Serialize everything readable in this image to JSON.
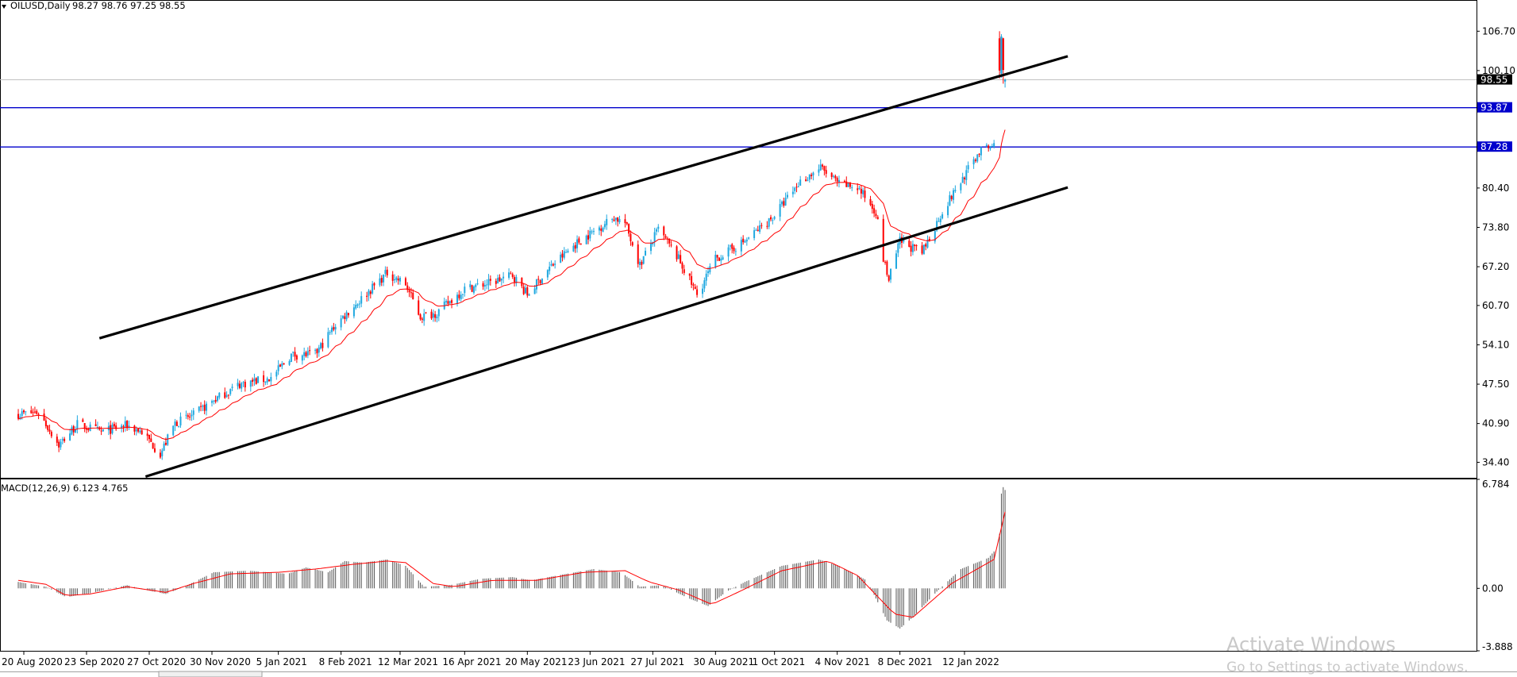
{
  "chart_data": [
    {
      "type": "candlestick",
      "symbol_label": "OILUSD,Daily",
      "ohlc_label": "98.27 98.76 97.25 98.55",
      "y_ticks": [
        "106.70",
        "100.10",
        "80.40",
        "73.80",
        "67.20",
        "60.70",
        "54.10",
        "47.50",
        "40.90",
        "34.40"
      ],
      "ylim": [
        31.8,
        111.8
      ],
      "x_ticks": [
        "20 Aug 2020",
        "23 Sep 2020",
        "27 Oct 2020",
        "30 Nov 2020",
        "5 Jan 2021",
        "8 Feb 2021",
        "12 Mar 2021",
        "16 Apr 2021",
        "20 May 2021",
        "23 Jun 2021",
        "27 Jul 2021",
        "30 Aug 2021",
        "1 Oct 2021",
        "4 Nov 2021",
        "8 Dec 2021",
        "12 Jan 2022"
      ],
      "price_points": [
        [
          "2020-08-17",
          42.5
        ],
        [
          "2020-08-28",
          42.8
        ],
        [
          "2020-09-08",
          37.3
        ],
        [
          "2020-09-18",
          40.8
        ],
        [
          "2020-10-01",
          39.5
        ],
        [
          "2020-10-15",
          40.6
        ],
        [
          "2020-10-23",
          39.5
        ],
        [
          "2020-11-02",
          35.8
        ],
        [
          "2020-11-10",
          41.0
        ],
        [
          "2020-11-20",
          42.3
        ],
        [
          "2020-12-01",
          44.8
        ],
        [
          "2020-12-15",
          47.5
        ],
        [
          "2021-01-01",
          48.5
        ],
        [
          "2021-01-12",
          52.4
        ],
        [
          "2021-01-25",
          52.5
        ],
        [
          "2021-02-05",
          57.5
        ],
        [
          "2021-02-18",
          61.5
        ],
        [
          "2021-03-05",
          66.2
        ],
        [
          "2021-03-15",
          64.2
        ],
        [
          "2021-03-23",
          58.8
        ],
        [
          "2021-04-01",
          59.5
        ],
        [
          "2021-04-16",
          63.5
        ],
        [
          "2021-04-30",
          64.5
        ],
        [
          "2021-05-12",
          65.8
        ],
        [
          "2021-05-20",
          62.5
        ],
        [
          "2021-06-01",
          67.0
        ],
        [
          "2021-06-15",
          71.0
        ],
        [
          "2021-07-06",
          75.5
        ],
        [
          "2021-07-12",
          74.5
        ],
        [
          "2021-07-20",
          67.5
        ],
        [
          "2021-07-30",
          73.5
        ],
        [
          "2021-08-10",
          68.5
        ],
        [
          "2021-08-20",
          62.5
        ],
        [
          "2021-08-30",
          68.5
        ],
        [
          "2021-09-15",
          71.5
        ],
        [
          "2021-09-30",
          75.5
        ],
        [
          "2021-10-15",
          81.5
        ],
        [
          "2021-10-26",
          83.8
        ],
        [
          "2021-11-05",
          81.0
        ],
        [
          "2021-11-15",
          80.5
        ],
        [
          "2021-11-25",
          76.5
        ],
        [
          "2021-11-29",
          68.5
        ],
        [
          "2021-12-02",
          65.0
        ],
        [
          "2021-12-08",
          71.5
        ],
        [
          "2021-12-20",
          69.5
        ],
        [
          "2021-12-31",
          76.5
        ],
        [
          "2022-01-12",
          82.5
        ],
        [
          "2022-01-20",
          86.5
        ],
        [
          "2022-01-28",
          87.5
        ]
      ],
      "last_candles": [
        {
          "date": "2022-01-31",
          "open": 105.5,
          "high": 106.7,
          "low": 98.8,
          "close": 100.1
        },
        {
          "date": "2022-02-01",
          "open": 99.6,
          "high": 106.2,
          "low": 98.9,
          "close": 105.8
        },
        {
          "date": "2022-02-02",
          "open": 105.5,
          "high": 105.6,
          "low": 97.9,
          "close": 100.2
        },
        {
          "date": "2022-02-03",
          "open": 98.27,
          "high": 98.76,
          "low": 97.25,
          "close": 98.55
        }
      ],
      "moving_average_color": "#ff0000",
      "bull_color": "#1fa8e0",
      "bear_color": "#ff0000",
      "horizontal_levels": [
        {
          "value": 93.87,
          "label": "93.87",
          "color": "#0000cc"
        },
        {
          "value": 87.28,
          "label": "87.28",
          "color": "#0000cc"
        }
      ],
      "current_price": {
        "value": 98.55,
        "label": "98.55"
      },
      "channel_lines": [
        {
          "from": [
            "2020-09-30",
            55.2
          ],
          "to": [
            "2022-03-09",
            102.5
          ]
        },
        {
          "from": [
            "2020-10-25",
            32.0
          ],
          "to": [
            "2022-03-09",
            80.5
          ]
        }
      ]
    },
    {
      "type": "histogram",
      "label": "MACD(12,26,9) 6.123 4.765",
      "y_ticks": [
        "6.784",
        "0.00",
        "-3.888"
      ],
      "ylim": [
        -3.888,
        6.784
      ],
      "macd_points": [
        [
          "2020-08-17",
          0.4
        ],
        [
          "2020-09-01",
          0.1
        ],
        [
          "2020-09-12",
          -0.55
        ],
        [
          "2020-09-25",
          -0.3
        ],
        [
          "2020-10-15",
          0.2
        ],
        [
          "2020-10-25",
          -0.1
        ],
        [
          "2020-11-05",
          -0.35
        ],
        [
          "2020-11-15",
          0.1
        ],
        [
          "2020-12-01",
          1.0
        ],
        [
          "2020-12-20",
          1.1
        ],
        [
          "2021-01-10",
          0.9
        ],
        [
          "2021-01-20",
          1.3
        ],
        [
          "2021-02-01",
          1.0
        ],
        [
          "2021-02-10",
          1.7
        ],
        [
          "2021-02-20",
          1.6
        ],
        [
          "2021-03-05",
          1.8
        ],
        [
          "2021-03-15",
          1.4
        ],
        [
          "2021-03-25",
          0.1
        ],
        [
          "2021-04-08",
          0.2
        ],
        [
          "2021-04-25",
          0.6
        ],
        [
          "2021-05-12",
          0.7
        ],
        [
          "2021-05-22",
          0.5
        ],
        [
          "2021-06-10",
          0.9
        ],
        [
          "2021-06-25",
          1.2
        ],
        [
          "2021-07-10",
          1.0
        ],
        [
          "2021-07-20",
          0.1
        ],
        [
          "2021-08-01",
          0.2
        ],
        [
          "2021-08-15",
          -0.6
        ],
        [
          "2021-08-26",
          -1.1
        ],
        [
          "2021-09-05",
          -0.2
        ],
        [
          "2021-09-15",
          0.4
        ],
        [
          "2021-10-05",
          1.4
        ],
        [
          "2021-10-25",
          1.8
        ],
        [
          "2021-11-05",
          1.4
        ],
        [
          "2021-11-20",
          0.5
        ],
        [
          "2021-12-01",
          -2.0
        ],
        [
          "2021-12-08",
          -2.5
        ],
        [
          "2021-12-15",
          -1.8
        ],
        [
          "2021-12-28",
          -0.2
        ],
        [
          "2022-01-10",
          1.2
        ],
        [
          "2022-01-25",
          1.9
        ],
        [
          "2022-01-28",
          2.3
        ],
        [
          "2022-01-31",
          3.4
        ],
        [
          "2022-02-01",
          5.9
        ],
        [
          "2022-02-02",
          6.3
        ],
        [
          "2022-02-03",
          6.123
        ]
      ],
      "signal_points": [
        [
          "2020-08-17",
          0.5
        ],
        [
          "2020-09-01",
          0.25
        ],
        [
          "2020-09-12",
          -0.45
        ],
        [
          "2020-09-25",
          -0.35
        ],
        [
          "2020-10-15",
          0.1
        ],
        [
          "2020-11-05",
          -0.25
        ],
        [
          "2020-11-20",
          0.3
        ],
        [
          "2020-12-10",
          0.9
        ],
        [
          "2021-01-05",
          1.0
        ],
        [
          "2021-01-25",
          1.2
        ],
        [
          "2021-02-15",
          1.5
        ],
        [
          "2021-03-05",
          1.7
        ],
        [
          "2021-03-15",
          1.6
        ],
        [
          "2021-03-30",
          0.3
        ],
        [
          "2021-04-10",
          0.1
        ],
        [
          "2021-05-01",
          0.5
        ],
        [
          "2021-05-25",
          0.5
        ],
        [
          "2021-06-20",
          1.0
        ],
        [
          "2021-07-12",
          1.1
        ],
        [
          "2021-07-25",
          0.4
        ],
        [
          "2021-08-10",
          -0.1
        ],
        [
          "2021-08-28",
          -1.0
        ],
        [
          "2021-09-12",
          -0.2
        ],
        [
          "2021-10-05",
          1.1
        ],
        [
          "2021-10-30",
          1.7
        ],
        [
          "2021-11-15",
          0.8
        ],
        [
          "2021-12-05",
          -1.6
        ],
        [
          "2021-12-15",
          -1.8
        ],
        [
          "2022-01-05",
          0.3
        ],
        [
          "2022-01-28",
          1.8
        ],
        [
          "2022-02-03",
          4.765
        ]
      ],
      "histogram_color": "#555555",
      "signal_color": "#ff0000"
    }
  ],
  "watermark": {
    "line1": "Activate Windows",
    "line2": "Go to Settings to activate Windows."
  }
}
